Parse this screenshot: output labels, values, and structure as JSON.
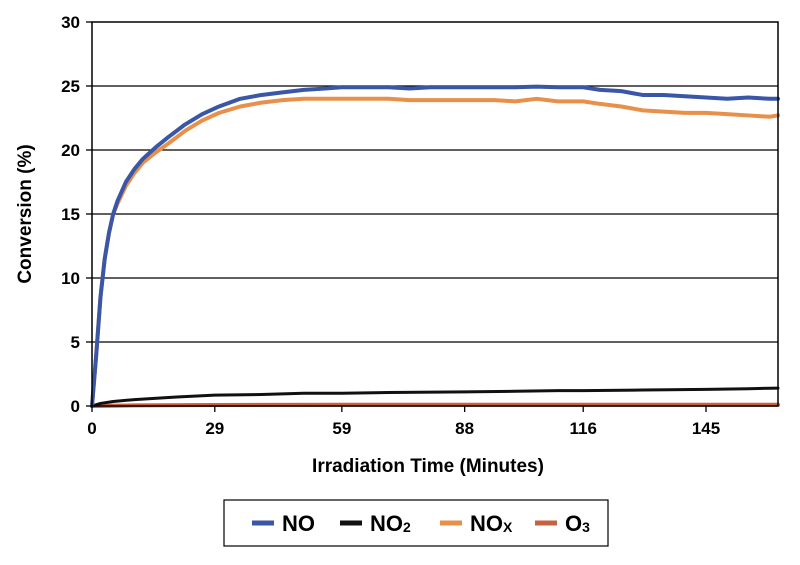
{
  "chart_data": {
    "type": "line",
    "title": "",
    "xlabel": "Irradiation Time (Minutes)",
    "ylabel": "Conversion (%)",
    "xlim": [
      0,
      162
    ],
    "ylim": [
      0,
      30
    ],
    "grid": "horizontal",
    "legend_position": "bottom",
    "x_ticks": [
      0,
      29,
      59,
      88,
      116,
      145
    ],
    "y_ticks": [
      0,
      5,
      10,
      15,
      20,
      25,
      30
    ],
    "series": [
      {
        "name": "NO",
        "name_main": "NO",
        "name_sub": "",
        "color": "#3a56a6",
        "x": [
          0,
          1,
          2,
          3,
          4,
          5,
          6,
          8,
          10,
          12,
          15,
          18,
          22,
          26,
          30,
          35,
          40,
          45,
          50,
          55,
          59,
          65,
          70,
          75,
          80,
          88,
          95,
          100,
          105,
          110,
          116,
          120,
          125,
          130,
          135,
          140,
          145,
          150,
          155,
          160,
          162
        ],
        "y": [
          0,
          4,
          8.5,
          11.5,
          13.5,
          15,
          16,
          17.5,
          18.5,
          19.3,
          20.2,
          21,
          22,
          22.8,
          23.4,
          24,
          24.3,
          24.5,
          24.7,
          24.8,
          24.9,
          24.9,
          24.9,
          24.8,
          24.9,
          24.9,
          24.9,
          24.9,
          24.95,
          24.9,
          24.9,
          24.7,
          24.6,
          24.3,
          24.3,
          24.2,
          24.1,
          24.0,
          24.1,
          24.0,
          24.0
        ]
      },
      {
        "name": "NO2",
        "name_main": "NO",
        "name_sub": "2",
        "color": "#111111",
        "x": [
          0,
          1,
          2,
          5,
          10,
          20,
          29,
          40,
          50,
          59,
          70,
          88,
          100,
          110,
          116,
          130,
          145,
          155,
          162
        ],
        "y": [
          0,
          0.1,
          0.2,
          0.35,
          0.5,
          0.7,
          0.85,
          0.9,
          1.0,
          1.0,
          1.05,
          1.1,
          1.15,
          1.2,
          1.2,
          1.25,
          1.3,
          1.35,
          1.4
        ]
      },
      {
        "name": "NOX",
        "name_main": "NO",
        "name_sub": "X",
        "color": "#e8904a",
        "x": [
          0,
          1,
          2,
          3,
          4,
          5,
          6,
          8,
          10,
          12,
          15,
          18,
          22,
          26,
          30,
          35,
          40,
          45,
          50,
          55,
          59,
          65,
          70,
          75,
          80,
          88,
          95,
          100,
          105,
          110,
          116,
          120,
          125,
          130,
          135,
          140,
          145,
          150,
          155,
          160,
          162
        ],
        "y": [
          0,
          4,
          8.5,
          11.5,
          13.5,
          15,
          15.8,
          17.2,
          18.2,
          19.0,
          19.8,
          20.5,
          21.5,
          22.3,
          22.9,
          23.4,
          23.7,
          23.9,
          24.0,
          24.0,
          24.0,
          24.0,
          24.0,
          23.9,
          23.9,
          23.9,
          23.9,
          23.8,
          24.0,
          23.8,
          23.8,
          23.6,
          23.4,
          23.1,
          23.0,
          22.9,
          22.9,
          22.8,
          22.7,
          22.6,
          22.7
        ]
      },
      {
        "name": "O3",
        "name_main": "O",
        "name_sub": "3",
        "color": "#c9613f",
        "x": [
          0,
          10,
          29,
          59,
          88,
          116,
          145,
          162
        ],
        "y": [
          0,
          0.05,
          0.08,
          0.1,
          0.1,
          0.1,
          0.1,
          0.1
        ]
      }
    ]
  }
}
